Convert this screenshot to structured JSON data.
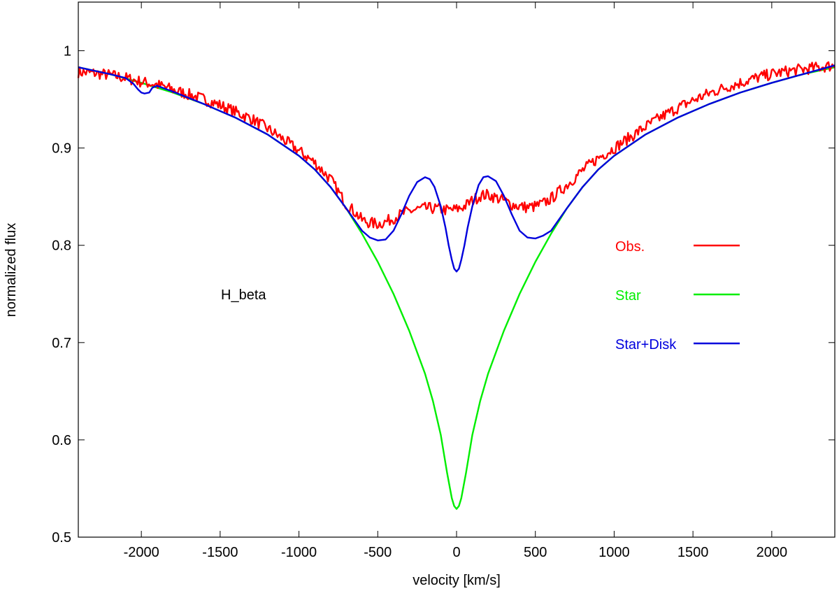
{
  "chart_data": {
    "type": "line",
    "title": "",
    "xlabel": "velocity [km/s]",
    "ylabel": "normalized flux",
    "xlim": [
      -2400,
      2400
    ],
    "ylim": [
      0.5,
      1.05
    ],
    "xticks": [
      -2000,
      -1500,
      -1000,
      -500,
      0,
      500,
      1000,
      1500,
      2000
    ],
    "yticks": [
      0.5,
      0.6,
      0.7,
      0.8,
      0.9,
      1.0
    ],
    "xtick_labels": [
      "-2000",
      "-1500",
      "-1000",
      "-500",
      "0",
      "500",
      "1000",
      "1500",
      "2000"
    ],
    "ytick_labels": [
      "0.5",
      "0.6",
      "0.7",
      "0.8",
      "0.9",
      "1"
    ],
    "grid": false,
    "legend_position": "right",
    "annotation": "H_beta",
    "series": [
      {
        "name": "Obs.",
        "color": "#ff0000",
        "noisy": true,
        "x": [
          -2400,
          -2300,
          -2200,
          -2100,
          -2000,
          -1900,
          -1800,
          -1700,
          -1600,
          -1500,
          -1400,
          -1300,
          -1200,
          -1100,
          -1000,
          -900,
          -800,
          -700,
          -650,
          -600,
          -550,
          -500,
          -450,
          -400,
          -350,
          -300,
          -250,
          -200,
          -150,
          -100,
          -50,
          0,
          50,
          100,
          150,
          200,
          250,
          300,
          350,
          400,
          450,
          500,
          550,
          600,
          650,
          700,
          800,
          900,
          1000,
          1100,
          1200,
          1300,
          1400,
          1500,
          1600,
          1700,
          1800,
          1900,
          2000,
          2100,
          2200,
          2300,
          2400
        ],
        "y": [
          0.978,
          0.977,
          0.975,
          0.972,
          0.968,
          0.965,
          0.96,
          0.955,
          0.95,
          0.944,
          0.937,
          0.93,
          0.92,
          0.909,
          0.897,
          0.885,
          0.868,
          0.842,
          0.835,
          0.826,
          0.823,
          0.822,
          0.824,
          0.828,
          0.832,
          0.835,
          0.837,
          0.838,
          0.838,
          0.837,
          0.836,
          0.837,
          0.84,
          0.846,
          0.851,
          0.852,
          0.849,
          0.846,
          0.842,
          0.84,
          0.839,
          0.84,
          0.843,
          0.848,
          0.855,
          0.862,
          0.877,
          0.89,
          0.9,
          0.911,
          0.922,
          0.932,
          0.941,
          0.949,
          0.956,
          0.962,
          0.967,
          0.972,
          0.976,
          0.979,
          0.981,
          0.983,
          0.985
        ]
      },
      {
        "name": "Star",
        "color": "#00ee00",
        "x": [
          -2400,
          -2200,
          -2000,
          -1800,
          -1600,
          -1400,
          -1200,
          -1000,
          -900,
          -800,
          -700,
          -600,
          -500,
          -400,
          -300,
          -200,
          -150,
          -100,
          -60,
          -30,
          -15,
          0,
          15,
          30,
          60,
          100,
          150,
          200,
          300,
          400,
          500,
          600,
          700,
          800,
          900,
          1000,
          1200,
          1400,
          1600,
          1800,
          2000,
          2200,
          2400
        ],
        "y": [
          0.983,
          0.976,
          0.967,
          0.957,
          0.945,
          0.931,
          0.914,
          0.892,
          0.878,
          0.86,
          0.838,
          0.812,
          0.783,
          0.75,
          0.712,
          0.668,
          0.64,
          0.605,
          0.566,
          0.54,
          0.532,
          0.529,
          0.532,
          0.54,
          0.566,
          0.605,
          0.64,
          0.668,
          0.712,
          0.75,
          0.783,
          0.812,
          0.838,
          0.86,
          0.878,
          0.892,
          0.914,
          0.931,
          0.945,
          0.957,
          0.967,
          0.976,
          0.983
        ]
      },
      {
        "name": "Star+Disk",
        "color": "#0000dd",
        "x": [
          -2400,
          -2200,
          -2100,
          -2050,
          -2020,
          -2000,
          -1980,
          -1950,
          -1930,
          -1900,
          -1800,
          -1600,
          -1400,
          -1200,
          -1000,
          -900,
          -800,
          -700,
          -600,
          -550,
          -500,
          -450,
          -400,
          -350,
          -300,
          -250,
          -200,
          -170,
          -140,
          -100,
          -70,
          -50,
          -30,
          -15,
          0,
          15,
          30,
          50,
          70,
          100,
          140,
          170,
          200,
          250,
          300,
          350,
          400,
          450,
          500,
          550,
          600,
          700,
          800,
          900,
          1000,
          1200,
          1400,
          1600,
          1800,
          2000,
          2200,
          2400
        ],
        "y": [
          0.983,
          0.976,
          0.972,
          0.966,
          0.96,
          0.957,
          0.956,
          0.957,
          0.962,
          0.964,
          0.958,
          0.945,
          0.931,
          0.914,
          0.892,
          0.878,
          0.86,
          0.838,
          0.815,
          0.808,
          0.805,
          0.806,
          0.815,
          0.832,
          0.851,
          0.865,
          0.87,
          0.868,
          0.86,
          0.84,
          0.818,
          0.8,
          0.785,
          0.776,
          0.773,
          0.776,
          0.785,
          0.8,
          0.818,
          0.84,
          0.862,
          0.87,
          0.871,
          0.866,
          0.851,
          0.832,
          0.815,
          0.808,
          0.807,
          0.81,
          0.815,
          0.838,
          0.86,
          0.878,
          0.892,
          0.914,
          0.931,
          0.945,
          0.957,
          0.967,
          0.976,
          0.985
        ]
      }
    ]
  }
}
